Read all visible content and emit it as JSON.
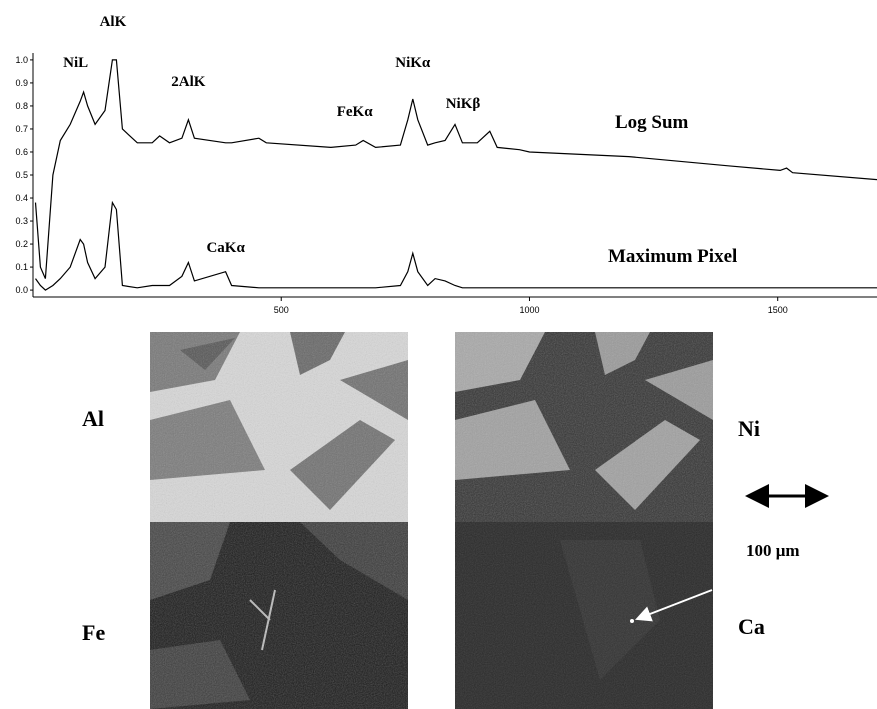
{
  "chart_data": {
    "type": "line",
    "x": [
      5,
      15,
      25,
      40,
      55,
      75,
      95,
      102,
      110,
      125,
      145,
      160,
      168,
      180,
      210,
      240,
      255,
      275,
      300,
      313,
      325,
      388,
      400,
      455,
      470,
      600,
      650,
      665,
      690,
      740,
      755,
      765,
      775,
      795,
      810,
      830,
      850,
      865,
      895,
      920,
      935,
      980,
      1000,
      1200,
      1400,
      1505,
      1518,
      1530,
      1700
    ],
    "series": [
      {
        "name": "Log Sum",
        "color": "#000000",
        "values": [
          0.38,
          0.1,
          0.05,
          0.5,
          0.65,
          0.72,
          0.82,
          0.86,
          0.8,
          0.72,
          0.78,
          1.0,
          1.0,
          0.7,
          0.64,
          0.64,
          0.67,
          0.64,
          0.66,
          0.74,
          0.66,
          0.64,
          0.64,
          0.66,
          0.64,
          0.62,
          0.63,
          0.65,
          0.62,
          0.63,
          0.74,
          0.83,
          0.74,
          0.63,
          0.64,
          0.65,
          0.72,
          0.64,
          0.64,
          0.69,
          0.62,
          0.61,
          0.6,
          0.58,
          0.54,
          0.52,
          0.53,
          0.51,
          0.48
        ]
      },
      {
        "name": "Maximum Pixel",
        "color": "#000000",
        "values": [
          0.05,
          0.02,
          0.0,
          0.02,
          0.05,
          0.1,
          0.22,
          0.2,
          0.12,
          0.05,
          0.1,
          0.38,
          0.35,
          0.02,
          0.01,
          0.02,
          0.02,
          0.02,
          0.06,
          0.12,
          0.04,
          0.08,
          0.02,
          0.01,
          0.01,
          0.01,
          0.01,
          0.01,
          0.01,
          0.02,
          0.08,
          0.16,
          0.08,
          0.02,
          0.05,
          0.04,
          0.02,
          0.01,
          0.01,
          0.01,
          0.01,
          0.01,
          0.01,
          0.01,
          0.01,
          0.01,
          0.01,
          0.01,
          0.01
        ]
      }
    ],
    "annotations": [
      {
        "text": "AlK",
        "x": 165
      },
      {
        "text": "NiL",
        "x": 102
      },
      {
        "text": "2AlK",
        "x": 313
      },
      {
        "text": "FeKα",
        "x": 660
      },
      {
        "text": "NiKα",
        "x": 765
      },
      {
        "text": "NiKβ",
        "x": 850
      },
      {
        "text": "CaKα",
        "x": 388
      }
    ],
    "xlim": [
      0,
      1700
    ],
    "xticks": [
      500,
      1000,
      1500
    ],
    "ylim": [
      -0.03,
      1.03
    ],
    "yticks": [
      {
        "value": 0,
        "label": "0.0"
      },
      {
        "value": 0.1,
        "label": "0.1"
      },
      {
        "value": 0.2,
        "label": "0.2"
      },
      {
        "value": 0.3,
        "label": "0.3"
      },
      {
        "value": 0.4,
        "label": "0.4"
      },
      {
        "value": 0.5,
        "label": "0.5"
      },
      {
        "value": 0.6,
        "label": "0.6"
      },
      {
        "value": 0.7,
        "label": "0.7"
      },
      {
        "value": 0.8,
        "label": "0.8"
      },
      {
        "value": 0.9,
        "label": "0.9"
      },
      {
        "value": 1.0,
        "label": "1.0"
      }
    ]
  },
  "maps": [
    {
      "label": "Al"
    },
    {
      "label": "Ni"
    },
    {
      "label": "Fe"
    },
    {
      "label": "Ca"
    }
  ],
  "scale_bar": "100 μm"
}
